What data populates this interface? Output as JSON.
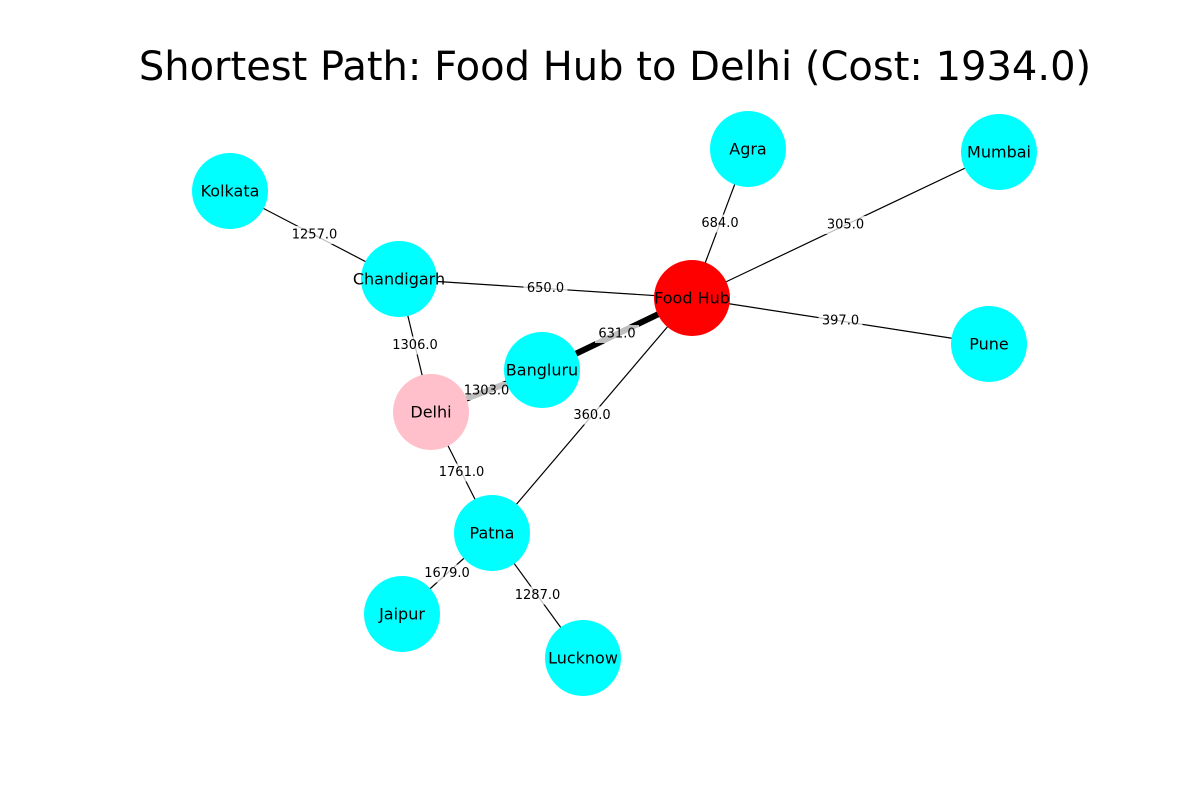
{
  "title": "Shortest Path: Food Hub to Delhi (Cost: 1934.0)",
  "colors": {
    "default_node": "#00ffff",
    "source_node": "#ff0000",
    "target_node": "#ffc0cb",
    "path_edge": "#000000",
    "edge": "#000000"
  },
  "nodes": [
    {
      "id": "Food Hub",
      "label": "Food Hub",
      "role": "source"
    },
    {
      "id": "Agra",
      "label": "Agra",
      "role": "default"
    },
    {
      "id": "Mumbai",
      "label": "Mumbai",
      "role": "default"
    },
    {
      "id": "Pune",
      "label": "Pune",
      "role": "default"
    },
    {
      "id": "Kolkata",
      "label": "Kolkata",
      "role": "default"
    },
    {
      "id": "Chandigarh",
      "label": "Chandigarh",
      "role": "default"
    },
    {
      "id": "Bangluru",
      "label": "Bangluru",
      "role": "default"
    },
    {
      "id": "Delhi",
      "label": "Delhi",
      "role": "target"
    },
    {
      "id": "Patna",
      "label": "Patna",
      "role": "default"
    },
    {
      "id": "Jaipur",
      "label": "Jaipur",
      "role": "default"
    },
    {
      "id": "Lucknow",
      "label": "Lucknow",
      "role": "default"
    }
  ],
  "edges": [
    {
      "from": "Food Hub",
      "to": "Agra",
      "weight": "684.0",
      "on_path": false
    },
    {
      "from": "Food Hub",
      "to": "Mumbai",
      "weight": "305.0",
      "on_path": false
    },
    {
      "from": "Food Hub",
      "to": "Pune",
      "weight": "397.0",
      "on_path": false
    },
    {
      "from": "Food Hub",
      "to": "Chandigarh",
      "weight": "650.0",
      "on_path": false
    },
    {
      "from": "Food Hub",
      "to": "Bangluru",
      "weight": "631.0",
      "on_path": true
    },
    {
      "from": "Food Hub",
      "to": "Patna",
      "weight": "360.0",
      "on_path": false
    },
    {
      "from": "Kolkata",
      "to": "Chandigarh",
      "weight": "1257.0",
      "on_path": false
    },
    {
      "from": "Chandigarh",
      "to": "Delhi",
      "weight": "1306.0",
      "on_path": false
    },
    {
      "from": "Bangluru",
      "to": "Delhi",
      "weight": "1303.0",
      "on_path": true
    },
    {
      "from": "Delhi",
      "to": "Patna",
      "weight": "1761.0",
      "on_path": false
    },
    {
      "from": "Patna",
      "to": "Jaipur",
      "weight": "1679.0",
      "on_path": false
    },
    {
      "from": "Patna",
      "to": "Lucknow",
      "weight": "1287.0",
      "on_path": false
    }
  ]
}
